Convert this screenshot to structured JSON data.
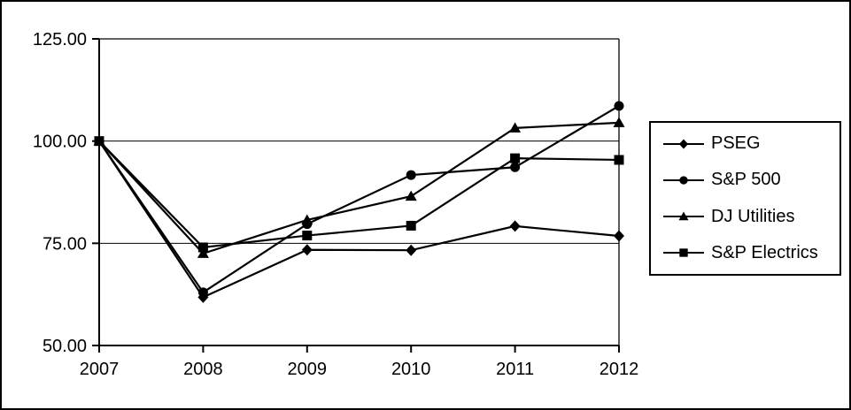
{
  "window": {
    "background": "#ffffff",
    "border_color": "#000000"
  },
  "chart_data": {
    "type": "line",
    "title": "",
    "xlabel": "",
    "ylabel": "",
    "x_categories": [
      "2007",
      "2008",
      "2009",
      "2010",
      "2011",
      "2012"
    ],
    "y_ticks": [
      50,
      75,
      100,
      125
    ],
    "y_tick_labels": [
      "50.00",
      "75.00",
      "100.00",
      "125.00"
    ],
    "ylim": [
      50,
      125
    ],
    "grid": "horizontal",
    "legend_position": "right",
    "line_color": "#000000",
    "series": [
      {
        "name": "PSEG",
        "marker": "diamond",
        "values": [
          100.0,
          61.8,
          73.4,
          73.3,
          79.2,
          76.8
        ]
      },
      {
        "name": "S&P 500",
        "marker": "circle",
        "values": [
          100.0,
          63.0,
          79.7,
          91.7,
          93.6,
          108.6
        ]
      },
      {
        "name": "DJ Utilities",
        "marker": "triangle",
        "values": [
          100.0,
          72.5,
          80.7,
          86.5,
          103.2,
          104.5
        ]
      },
      {
        "name": "S&P Electrics",
        "marker": "square",
        "values": [
          100.0,
          74.0,
          76.9,
          79.3,
          95.8,
          95.4
        ]
      }
    ]
  }
}
